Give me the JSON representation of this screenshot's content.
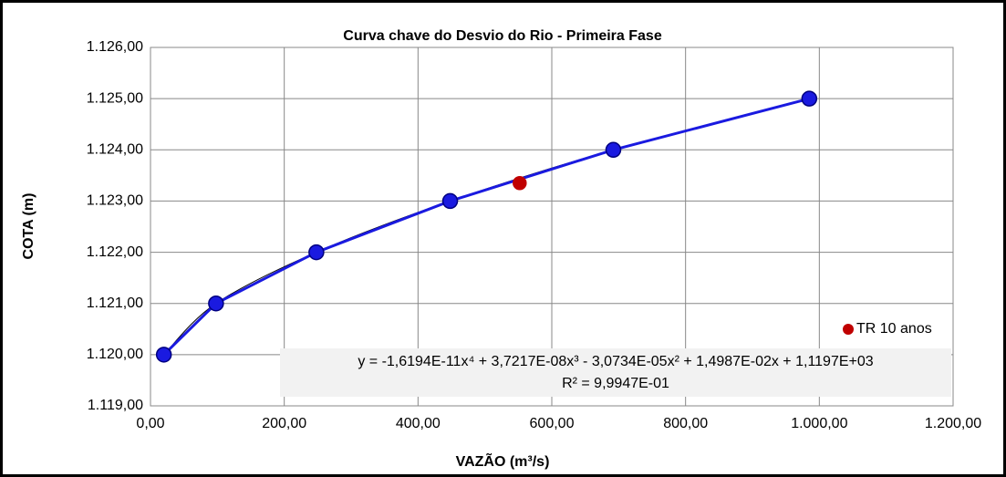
{
  "chart_data": {
    "type": "scatter",
    "title": "Curva chave do Desvio do Rio - Primeira Fase",
    "x_label": "VAZÃO (m³/s)",
    "y_label": "COTA (m)",
    "series": [
      {
        "color": "#1a1ae0",
        "x": [
          20,
          98,
          248,
          448,
          692,
          985
        ],
        "values": [
          1120,
          1121,
          1122,
          1123,
          1124,
          1125
        ]
      },
      {
        "name": "TR 10 anos",
        "color": "#c00000",
        "x": [
          552
        ],
        "values": [
          1123.35
        ]
      }
    ],
    "xlim": [
      0,
      1200
    ],
    "xticks": [
      {
        "value": 0,
        "label": "0,00"
      },
      {
        "value": 200,
        "label": "200,00"
      },
      {
        "value": 400,
        "label": "400,00"
      },
      {
        "value": 600,
        "label": "600,00"
      },
      {
        "value": 800,
        "label": "800,00"
      },
      {
        "value": 1000,
        "label": "1.000,00"
      },
      {
        "value": 1200,
        "label": "1.200,00"
      }
    ],
    "ylim": [
      1119,
      1126
    ],
    "yticks": [
      {
        "value": 1119,
        "label": "1.119,00"
      },
      {
        "value": 1120,
        "label": "1.120,00"
      },
      {
        "value": 1121,
        "label": "1.121,00"
      },
      {
        "value": 1122,
        "label": "1.122,00"
      },
      {
        "value": 1123,
        "label": "1.123,00"
      },
      {
        "value": 1124,
        "label": "1.124,00"
      },
      {
        "value": 1125,
        "label": "1.125,00"
      },
      {
        "value": 1126,
        "label": "1.126,00"
      }
    ],
    "grid": true,
    "trendline_equation": "y = -1,6194E-11x⁴ + 3,7217E-08x³ - 3,0734E-05x² + 1,4987E-02x + 1,1197E+03",
    "trendline_r2": "R² = 9,9947E-01"
  }
}
